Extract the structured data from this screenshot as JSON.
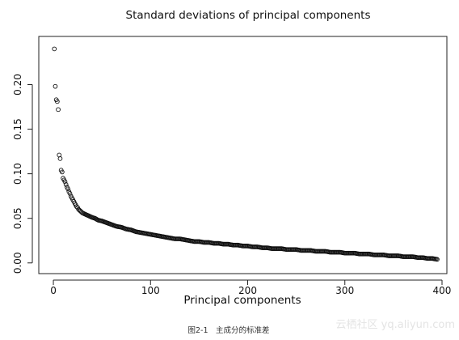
{
  "caption": "图2-1　主成分的标准差",
  "watermark": "云栖社区 yq.aliyun.com",
  "chart_data": {
    "type": "scatter",
    "title": "Standard deviations of principal components",
    "xlabel": "Principal components",
    "ylabel": "",
    "xlim": [
      -15,
      405
    ],
    "ylim": [
      -0.012,
      0.254
    ],
    "x_ticks": [
      0,
      100,
      200,
      300,
      400
    ],
    "x_tick_labels": [
      "0",
      "100",
      "200",
      "300",
      "400"
    ],
    "y_ticks": [
      0.0,
      0.05,
      0.1,
      0.15,
      0.2
    ],
    "y_tick_labels": [
      "0.00",
      "0.05",
      "0.10",
      "0.15",
      "0.20"
    ],
    "grid": false,
    "marker": "open-circle",
    "series": [
      {
        "x": [
          1,
          2,
          3,
          4,
          5,
          6,
          7,
          8,
          9,
          10,
          11,
          12,
          13,
          14,
          15,
          16,
          17,
          18,
          19,
          20,
          21,
          22,
          23,
          24,
          25,
          26,
          27,
          28,
          29,
          30,
          32,
          34,
          36,
          38,
          40,
          43,
          46,
          50,
          55,
          60,
          65,
          70,
          75,
          80,
          85,
          90,
          95,
          100,
          105,
          110,
          115,
          120,
          125,
          130,
          135,
          140,
          145,
          150,
          155,
          160,
          165,
          170,
          175,
          180,
          185,
          190,
          195,
          200,
          205,
          210,
          215,
          220,
          225,
          230,
          235,
          240,
          245,
          250,
          255,
          260,
          265,
          270,
          275,
          280,
          285,
          290,
          295,
          300,
          305,
          310,
          315,
          320,
          325,
          330,
          335,
          340,
          345,
          350,
          355,
          360,
          365,
          370,
          375,
          380,
          385,
          390,
          395
        ],
        "y": [
          0.24,
          0.198,
          0.183,
          0.181,
          0.172,
          0.121,
          0.117,
          0.104,
          0.102,
          0.095,
          0.093,
          0.091,
          0.088,
          0.085,
          0.083,
          0.08,
          0.078,
          0.075,
          0.073,
          0.071,
          0.069,
          0.067,
          0.065,
          0.063,
          0.062,
          0.06,
          0.059,
          0.058,
          0.057,
          0.056,
          0.055,
          0.054,
          0.053,
          0.052,
          0.051,
          0.05,
          0.048,
          0.047,
          0.045,
          0.043,
          0.041,
          0.04,
          0.038,
          0.037,
          0.035,
          0.034,
          0.033,
          0.032,
          0.031,
          0.03,
          0.029,
          0.028,
          0.027,
          0.027,
          0.026,
          0.025,
          0.024,
          0.024,
          0.023,
          0.023,
          0.022,
          0.022,
          0.021,
          0.021,
          0.02,
          0.02,
          0.019,
          0.019,
          0.018,
          0.018,
          0.017,
          0.017,
          0.016,
          0.016,
          0.016,
          0.015,
          0.015,
          0.015,
          0.014,
          0.014,
          0.014,
          0.013,
          0.013,
          0.013,
          0.012,
          0.012,
          0.012,
          0.011,
          0.011,
          0.011,
          0.01,
          0.01,
          0.01,
          0.009,
          0.009,
          0.009,
          0.008,
          0.008,
          0.008,
          0.007,
          0.007,
          0.007,
          0.006,
          0.006,
          0.005,
          0.005,
          0.004
        ]
      }
    ]
  }
}
